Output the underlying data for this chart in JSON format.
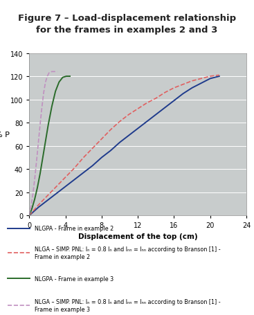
{
  "title": "Figure 7 – Load-displacement relationship\nfor the frames in examples 2 and 3",
  "title_bg_color": "#F5C518",
  "title_fontsize": 9.5,
  "xlabel": "Displacement of the top (cm)",
  "ylabel": "% P",
  "xlim": [
    0,
    24
  ],
  "ylim": [
    0,
    140
  ],
  "xticks": [
    0,
    4,
    8,
    12,
    16,
    20,
    24
  ],
  "yticks": [
    0,
    20,
    40,
    60,
    80,
    100,
    120,
    140
  ],
  "plot_bg_color": "#C8CCCC",
  "grid_color": "#FFFFFF",
  "series": {
    "ex2_nlgpa": {
      "color": "#1F3B8C",
      "linestyle": "-",
      "linewidth": 1.4,
      "x": [
        0,
        1,
        2,
        3,
        4,
        5,
        6,
        7,
        8,
        9,
        10,
        11,
        12,
        13,
        14,
        15,
        16,
        17,
        18,
        19,
        20,
        21
      ],
      "y": [
        0,
        7,
        13,
        19,
        25,
        31,
        37,
        43,
        50,
        56,
        63,
        69,
        75,
        81,
        87,
        93,
        99,
        105,
        110,
        114,
        118,
        120
      ]
    },
    "ex2_nlga": {
      "color": "#E06060",
      "linestyle": "--",
      "linewidth": 1.2,
      "x": [
        0,
        1,
        2,
        3,
        4,
        5,
        6,
        7,
        8,
        9,
        10,
        11,
        12,
        13,
        14,
        15,
        16,
        17,
        18,
        19,
        20,
        21
      ],
      "y": [
        0,
        9,
        17,
        25,
        33,
        41,
        50,
        58,
        66,
        74,
        81,
        87,
        92,
        97,
        101,
        106,
        110,
        113,
        116,
        118,
        120,
        121
      ]
    },
    "ex3_nlgpa": {
      "color": "#2A6B2A",
      "linestyle": "-",
      "linewidth": 1.4,
      "x": [
        0,
        0.3,
        0.6,
        0.9,
        1.2,
        1.5,
        1.8,
        2.1,
        2.5,
        2.9,
        3.3,
        3.7,
        4.1,
        4.5
      ],
      "y": [
        0,
        6,
        14,
        24,
        36,
        50,
        64,
        78,
        94,
        107,
        115,
        119,
        120,
        120
      ]
    },
    "ex3_nlga": {
      "color": "#C090C0",
      "linestyle": "--",
      "linewidth": 1.2,
      "x": [
        0,
        0.2,
        0.4,
        0.6,
        0.8,
        1.0,
        1.2,
        1.4,
        1.6,
        1.8,
        2.0,
        2.2,
        2.5,
        2.8,
        3.1
      ],
      "y": [
        0,
        8,
        18,
        31,
        46,
        62,
        78,
        93,
        106,
        115,
        120,
        123,
        124,
        124,
        124
      ]
    }
  },
  "legend_entries": [
    {
      "color": "#1F3B8C",
      "linestyle": "-",
      "linewidth": 1.4,
      "text": "NLGPA - Frame in example 2"
    },
    {
      "color": "#E06060",
      "linestyle": "--",
      "linewidth": 1.2,
      "text": "NLGA – SIMP. PNL: Iₙ = 0.8 Iₙ and Iₙₙ = Iₙₙ according to Branson [1] -\nFrame in example 2"
    },
    {
      "color": "#2A6B2A",
      "linestyle": "-",
      "linewidth": 1.4,
      "text": "NLGPA - Frame in example 3"
    },
    {
      "color": "#C090C0",
      "linestyle": "--",
      "linewidth": 1.2,
      "text": "NLGA – SIMP. PNL: Iₙ = 0.8 Iₙ and Iₙₙ = Iₙₙ according to Branson [1] -\nFrame in example 3"
    }
  ]
}
